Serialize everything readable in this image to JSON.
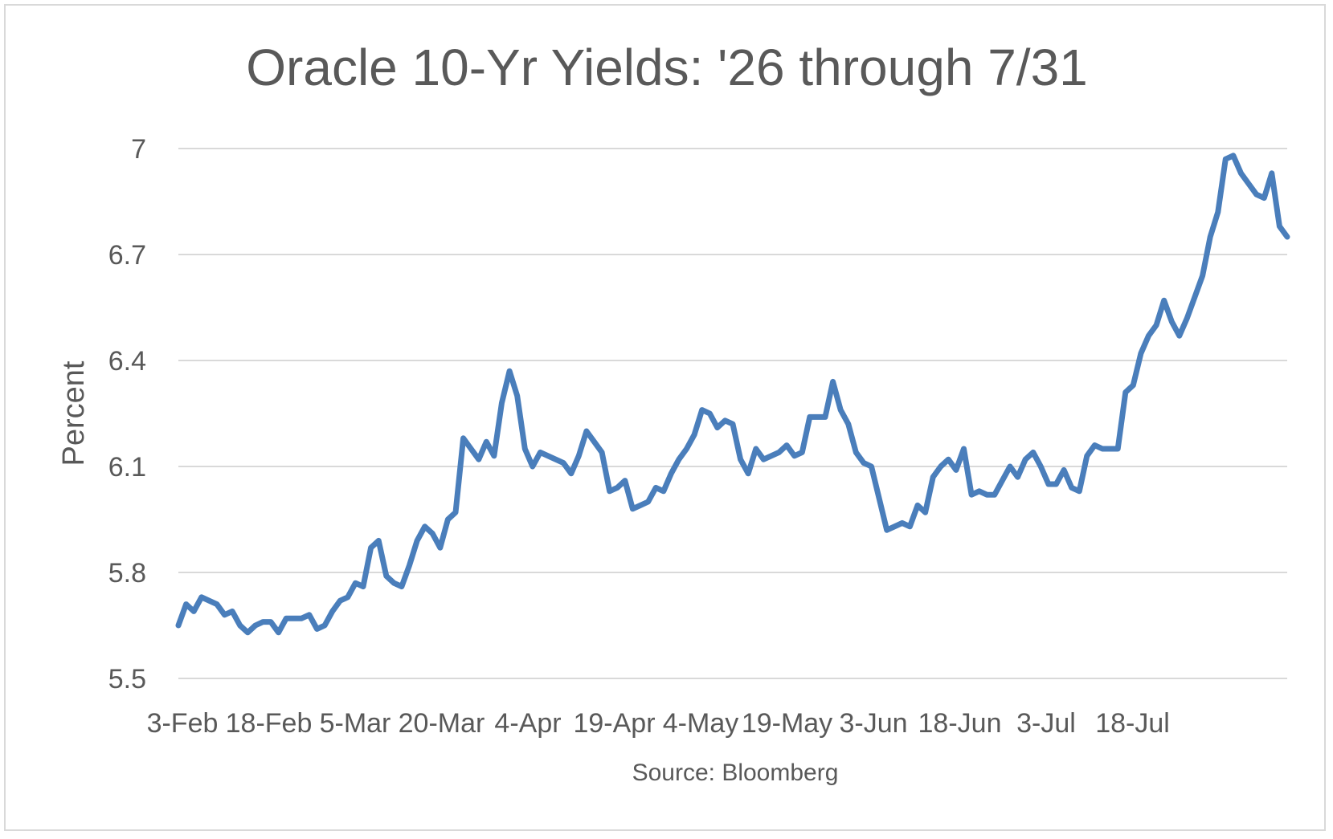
{
  "chart_data": {
    "type": "line",
    "title": "Oracle 10-Yr Yields: '26 through 7/31",
    "ylabel": "Percent",
    "xlabel": "",
    "source": "Source: Bloomberg",
    "ylim": [
      5.5,
      7.0
    ],
    "yticks": [
      "7",
      "6.7",
      "6.4",
      "6.1",
      "5.8",
      "5.5"
    ],
    "ytick_values": [
      7.0,
      6.7,
      6.4,
      6.1,
      5.8,
      5.5
    ],
    "xticks": [
      "3-Feb",
      "18-Feb",
      "5-Mar",
      "20-Mar",
      "4-Apr",
      "19-Apr",
      "4-May",
      "19-May",
      "3-Jun",
      "18-Jun",
      "3-Jul",
      "18-Jul"
    ],
    "grid": true,
    "legend": "none",
    "series_color": "#4a7ebb",
    "series": [
      {
        "values": [
          5.65,
          5.71,
          5.69,
          5.73,
          5.72,
          5.71,
          5.68,
          5.69,
          5.65,
          5.63,
          5.65,
          5.66,
          5.66,
          5.63,
          5.67,
          5.67,
          5.67,
          5.68,
          5.64,
          5.65,
          5.69,
          5.72,
          5.73,
          5.77,
          5.76,
          5.87,
          5.89,
          5.79,
          5.77,
          5.76,
          5.82,
          5.89,
          5.93,
          5.91,
          5.87,
          5.95,
          5.97,
          6.18,
          6.15,
          6.12,
          6.17,
          6.13,
          6.28,
          6.37,
          6.3,
          6.15,
          6.1,
          6.14,
          6.13,
          6.12,
          6.11,
          6.08,
          6.13,
          6.2,
          6.17,
          6.14,
          6.03,
          6.04,
          6.06,
          5.98,
          5.99,
          6.0,
          6.04,
          6.03,
          6.08,
          6.12,
          6.15,
          6.19,
          6.26,
          6.25,
          6.21,
          6.23,
          6.22,
          6.12,
          6.08,
          6.15,
          6.12,
          6.13,
          6.14,
          6.16,
          6.13,
          6.14,
          6.24,
          6.24,
          6.24,
          6.34,
          6.26,
          6.22,
          6.14,
          6.11,
          6.1,
          6.01,
          5.92,
          5.93,
          5.94,
          5.93,
          5.99,
          5.97,
          6.07,
          6.1,
          6.12,
          6.09,
          6.15,
          6.02,
          6.03,
          6.02,
          6.02,
          6.06,
          6.1,
          6.07,
          6.12,
          6.14,
          6.1,
          6.05,
          6.05,
          6.09,
          6.04,
          6.03,
          6.13,
          6.16,
          6.15,
          6.15,
          6.15,
          6.31,
          6.33,
          6.42,
          6.47,
          6.5,
          6.57,
          6.51,
          6.47,
          6.52,
          6.58,
          6.64,
          6.75,
          6.82,
          6.97,
          6.98,
          6.93,
          6.9,
          6.87,
          6.86,
          6.93,
          6.78,
          6.75
        ]
      }
    ]
  }
}
